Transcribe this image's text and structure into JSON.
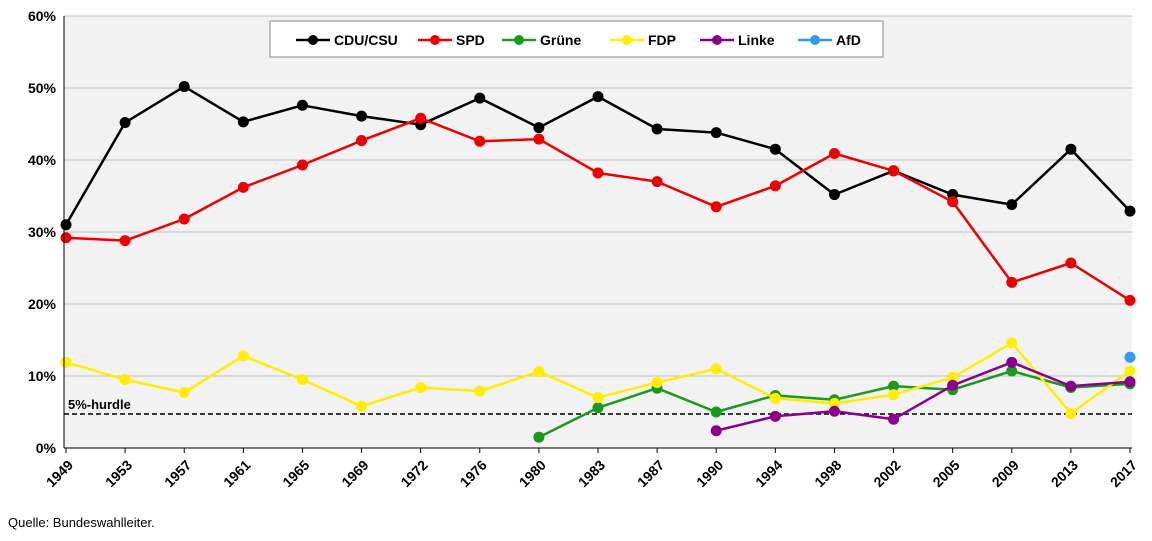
{
  "chart_data": {
    "type": "line",
    "categories": [
      "1949",
      "1953",
      "1957",
      "1961",
      "1965",
      "1969",
      "1972",
      "1976",
      "1980",
      "1983",
      "1987",
      "1990",
      "1994",
      "1998",
      "2002",
      "2005",
      "2009",
      "2013",
      "2017"
    ],
    "ylim": [
      0,
      60
    ],
    "yticks": [
      0,
      10,
      20,
      30,
      40,
      50,
      60
    ],
    "ytick_labels": [
      "0%",
      "10%",
      "20%",
      "30%",
      "40%",
      "50%",
      "60%"
    ],
    "grid": "horizontal",
    "legend_position": "top-center",
    "series": [
      {
        "name": "CDU/CSU",
        "color": "#000000",
        "values": [
          31.0,
          45.2,
          50.2,
          45.3,
          47.6,
          46.1,
          44.9,
          48.6,
          44.5,
          48.8,
          44.3,
          43.8,
          41.5,
          35.2,
          38.5,
          35.2,
          33.8,
          41.5,
          32.9
        ]
      },
      {
        "name": "SPD",
        "color": "#ee0000",
        "values": [
          29.2,
          28.8,
          31.8,
          36.2,
          39.3,
          42.7,
          45.8,
          42.6,
          42.9,
          38.2,
          37.0,
          33.5,
          36.4,
          40.9,
          38.5,
          34.2,
          23.0,
          25.7,
          20.5
        ]
      },
      {
        "name": "Grüne",
        "color": "#1a9a1a",
        "values": [
          null,
          null,
          null,
          null,
          null,
          null,
          null,
          null,
          1.5,
          5.6,
          8.3,
          5.0,
          7.3,
          6.7,
          8.6,
          8.1,
          10.7,
          8.4,
          8.9
        ]
      },
      {
        "name": "FDP",
        "color": "#ffee00",
        "values": [
          11.9,
          9.5,
          7.7,
          12.8,
          9.5,
          5.8,
          8.4,
          7.9,
          10.6,
          7.0,
          9.1,
          11.0,
          6.9,
          6.2,
          7.4,
          9.8,
          14.6,
          4.8,
          10.7
        ]
      },
      {
        "name": "Linke",
        "color": "#8b008b",
        "values": [
          null,
          null,
          null,
          null,
          null,
          null,
          null,
          null,
          null,
          null,
          null,
          2.4,
          4.4,
          5.1,
          4.0,
          8.7,
          11.9,
          8.6,
          9.2
        ]
      },
      {
        "name": "AfD",
        "color": "#3399ee",
        "values": [
          null,
          null,
          null,
          null,
          null,
          null,
          null,
          null,
          null,
          null,
          null,
          null,
          null,
          null,
          null,
          null,
          null,
          null,
          12.6
        ]
      }
    ],
    "threshold": {
      "value": 5,
      "label": "5%-hurdle"
    }
  },
  "source": "Quelle: Bundeswahlleiter."
}
